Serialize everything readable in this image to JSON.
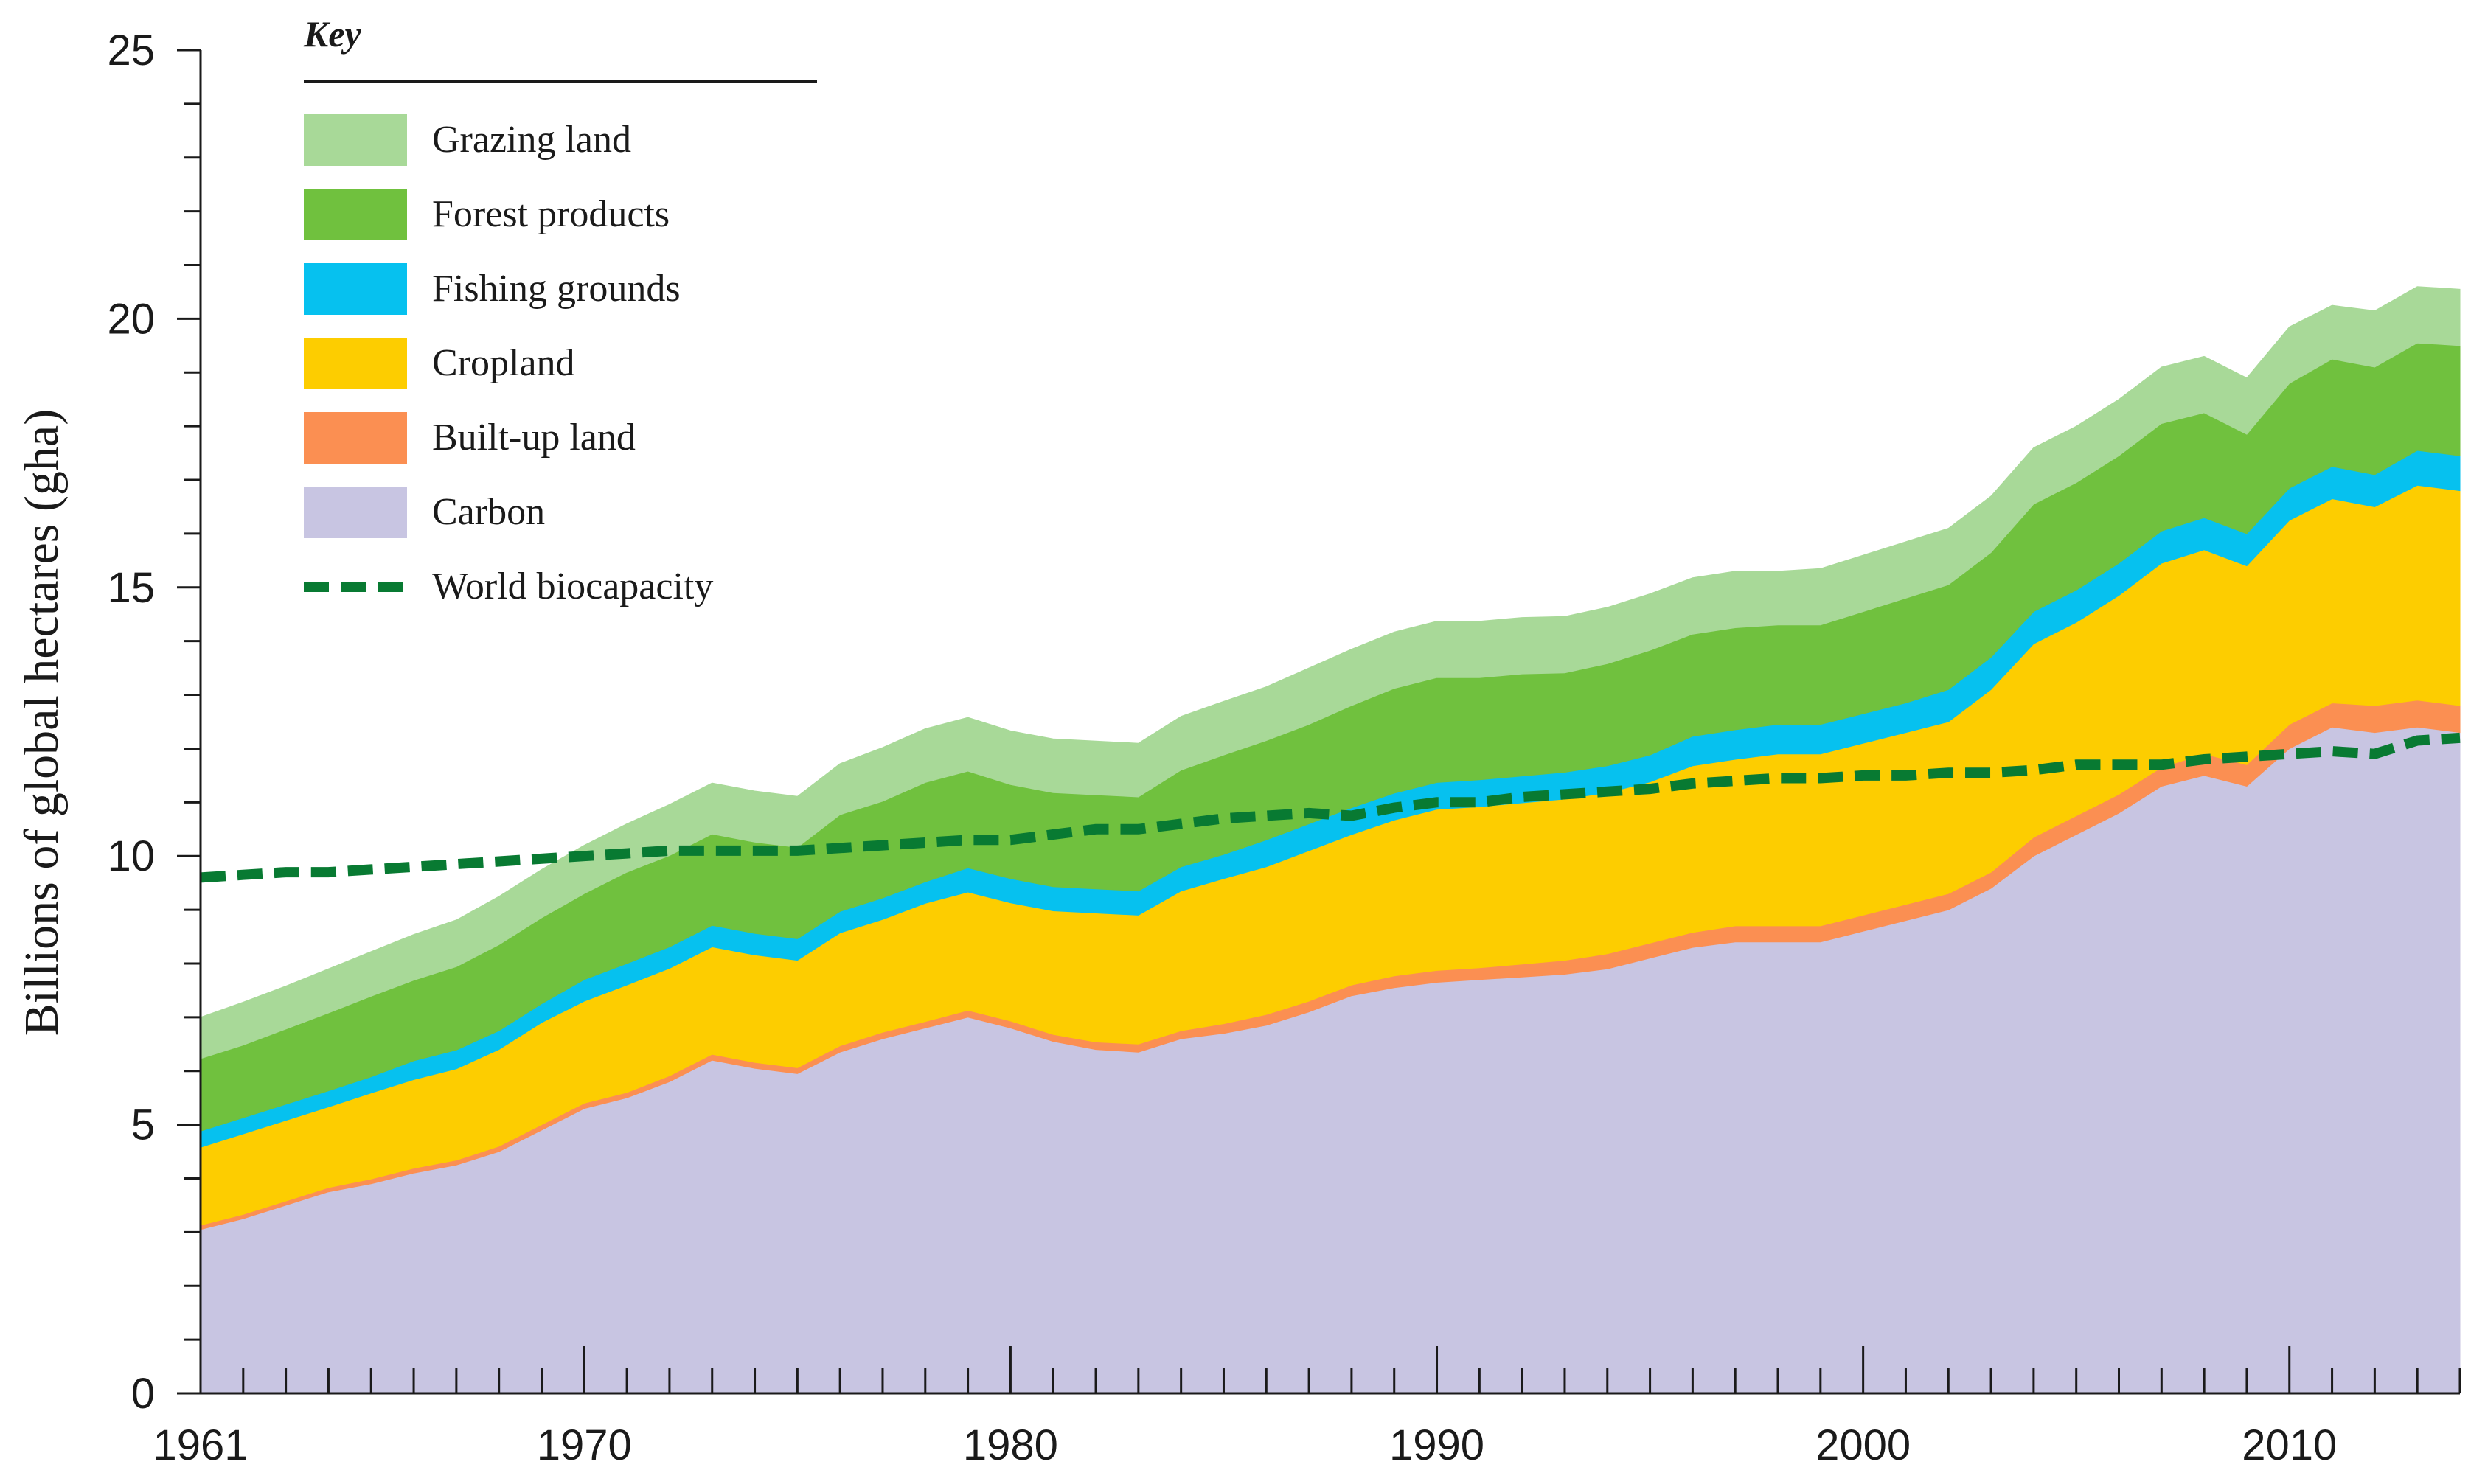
{
  "chart_data": {
    "type": "area",
    "stacked": true,
    "title": "",
    "xlabel": "",
    "ylabel": "Billions of global hectares (gha)",
    "xlim": [
      1961,
      2014
    ],
    "ylim": [
      0,
      25
    ],
    "x_ticks": [
      1961,
      1970,
      1980,
      1990,
      2000,
      2010
    ],
    "y_ticks": [
      0,
      5,
      10,
      15,
      20,
      25
    ],
    "legend_title": "Key",
    "legend_position": "top-left",
    "x": [
      1961,
      1962,
      1963,
      1964,
      1965,
      1966,
      1967,
      1968,
      1969,
      1970,
      1971,
      1972,
      1973,
      1974,
      1975,
      1976,
      1977,
      1978,
      1979,
      1980,
      1981,
      1982,
      1983,
      1984,
      1985,
      1986,
      1987,
      1988,
      1989,
      1990,
      1991,
      1992,
      1993,
      1994,
      1995,
      1996,
      1997,
      1998,
      1999,
      2000,
      2001,
      2002,
      2003,
      2004,
      2005,
      2006,
      2007,
      2008,
      2009,
      2010,
      2011,
      2012,
      2013,
      2014
    ],
    "series": [
      {
        "name": "Carbon",
        "color": "#c8c5e2",
        "values": [
          3.05,
          3.25,
          3.5,
          3.75,
          3.9,
          4.1,
          4.25,
          4.5,
          4.9,
          5.3,
          5.5,
          5.8,
          6.2,
          6.05,
          5.95,
          6.35,
          6.6,
          6.8,
          7.0,
          6.8,
          6.55,
          6.4,
          6.35,
          6.6,
          6.7,
          6.85,
          7.1,
          7.4,
          7.55,
          7.65,
          7.7,
          7.75,
          7.8,
          7.9,
          8.1,
          8.3,
          8.4,
          8.4,
          8.4,
          8.6,
          8.8,
          9.0,
          9.4,
          10.0,
          10.4,
          10.8,
          11.3,
          11.5,
          11.3,
          12.0,
          12.4,
          12.3,
          12.4,
          12.3
        ]
      },
      {
        "name": "Built-up land",
        "color": "#fb8f52",
        "values": [
          0.08,
          0.08,
          0.08,
          0.08,
          0.09,
          0.09,
          0.09,
          0.1,
          0.1,
          0.1,
          0.1,
          0.11,
          0.11,
          0.11,
          0.11,
          0.12,
          0.12,
          0.12,
          0.13,
          0.13,
          0.13,
          0.14,
          0.15,
          0.15,
          0.18,
          0.2,
          0.2,
          0.2,
          0.22,
          0.22,
          0.22,
          0.24,
          0.26,
          0.28,
          0.28,
          0.28,
          0.3,
          0.3,
          0.3,
          0.3,
          0.3,
          0.3,
          0.3,
          0.35,
          0.35,
          0.35,
          0.35,
          0.4,
          0.4,
          0.45,
          0.45,
          0.5,
          0.5,
          0.5
        ]
      },
      {
        "name": "Cropland",
        "color": "#fdcd00",
        "values": [
          1.45,
          1.5,
          1.5,
          1.5,
          1.6,
          1.65,
          1.7,
          1.8,
          1.9,
          1.9,
          2.0,
          2.0,
          2.0,
          2.0,
          2.0,
          2.1,
          2.1,
          2.2,
          2.2,
          2.2,
          2.3,
          2.4,
          2.4,
          2.6,
          2.7,
          2.75,
          2.8,
          2.8,
          2.9,
          3.0,
          3.0,
          3.0,
          3.0,
          3.0,
          3.0,
          3.1,
          3.1,
          3.2,
          3.2,
          3.2,
          3.2,
          3.2,
          3.4,
          3.6,
          3.6,
          3.7,
          3.8,
          3.8,
          3.7,
          3.8,
          3.8,
          3.7,
          4.0,
          4.0
        ]
      },
      {
        "name": "Fishing grounds",
        "color": "#06c1ef",
        "values": [
          0.3,
          0.3,
          0.3,
          0.3,
          0.3,
          0.35,
          0.35,
          0.35,
          0.35,
          0.4,
          0.4,
          0.4,
          0.4,
          0.4,
          0.4,
          0.4,
          0.4,
          0.4,
          0.45,
          0.45,
          0.45,
          0.45,
          0.45,
          0.45,
          0.45,
          0.5,
          0.5,
          0.5,
          0.5,
          0.5,
          0.5,
          0.5,
          0.5,
          0.5,
          0.5,
          0.55,
          0.55,
          0.55,
          0.55,
          0.55,
          0.55,
          0.6,
          0.6,
          0.6,
          0.6,
          0.6,
          0.6,
          0.6,
          0.6,
          0.6,
          0.6,
          0.6,
          0.65,
          0.65
        ]
      },
      {
        "name": "Forest products",
        "color": "#70c13e",
        "values": [
          1.35,
          1.35,
          1.4,
          1.45,
          1.5,
          1.5,
          1.55,
          1.6,
          1.6,
          1.6,
          1.7,
          1.7,
          1.7,
          1.7,
          1.7,
          1.8,
          1.8,
          1.85,
          1.8,
          1.75,
          1.75,
          1.75,
          1.75,
          1.8,
          1.85,
          1.85,
          1.85,
          1.9,
          1.95,
          1.95,
          1.9,
          1.9,
          1.85,
          1.9,
          1.95,
          1.9,
          1.9,
          1.85,
          1.85,
          1.9,
          1.95,
          1.95,
          1.95,
          2.0,
          2.0,
          2.0,
          2.0,
          1.95,
          1.85,
          1.95,
          2.0,
          2.0,
          2.0,
          2.05
        ]
      },
      {
        "name": "Grazing land",
        "color": "#a8d998",
        "values": [
          0.77,
          0.8,
          0.8,
          0.82,
          0.83,
          0.85,
          0.87,
          0.9,
          0.9,
          0.9,
          0.9,
          0.95,
          0.95,
          0.95,
          0.95,
          0.95,
          1.0,
          1.0,
          1.0,
          1.0,
          1.0,
          1.0,
          1.0,
          1.0,
          1.0,
          1.0,
          1.05,
          1.05,
          1.05,
          1.05,
          1.05,
          1.05,
          1.05,
          1.05,
          1.05,
          1.05,
          1.05,
          1.0,
          1.05,
          1.05,
          1.05,
          1.05,
          1.05,
          1.05,
          1.05,
          1.05,
          1.05,
          1.05,
          1.05,
          1.05,
          1.0,
          1.05,
          1.05,
          1.05
        ]
      }
    ],
    "line": {
      "name": "World biocapacity",
      "color": "#087a32",
      "style": "dashed",
      "values": [
        9.6,
        9.65,
        9.7,
        9.7,
        9.75,
        9.8,
        9.85,
        9.9,
        9.95,
        10.0,
        10.05,
        10.1,
        10.1,
        10.1,
        10.1,
        10.15,
        10.2,
        10.25,
        10.3,
        10.3,
        10.4,
        10.5,
        10.5,
        10.6,
        10.7,
        10.75,
        10.8,
        10.75,
        10.9,
        11.0,
        11.0,
        11.1,
        11.15,
        11.2,
        11.25,
        11.35,
        11.4,
        11.45,
        11.45,
        11.5,
        11.5,
        11.55,
        11.55,
        11.6,
        11.7,
        11.7,
        11.7,
        11.8,
        11.85,
        11.9,
        11.95,
        11.9,
        12.15,
        12.2
      ]
    }
  }
}
